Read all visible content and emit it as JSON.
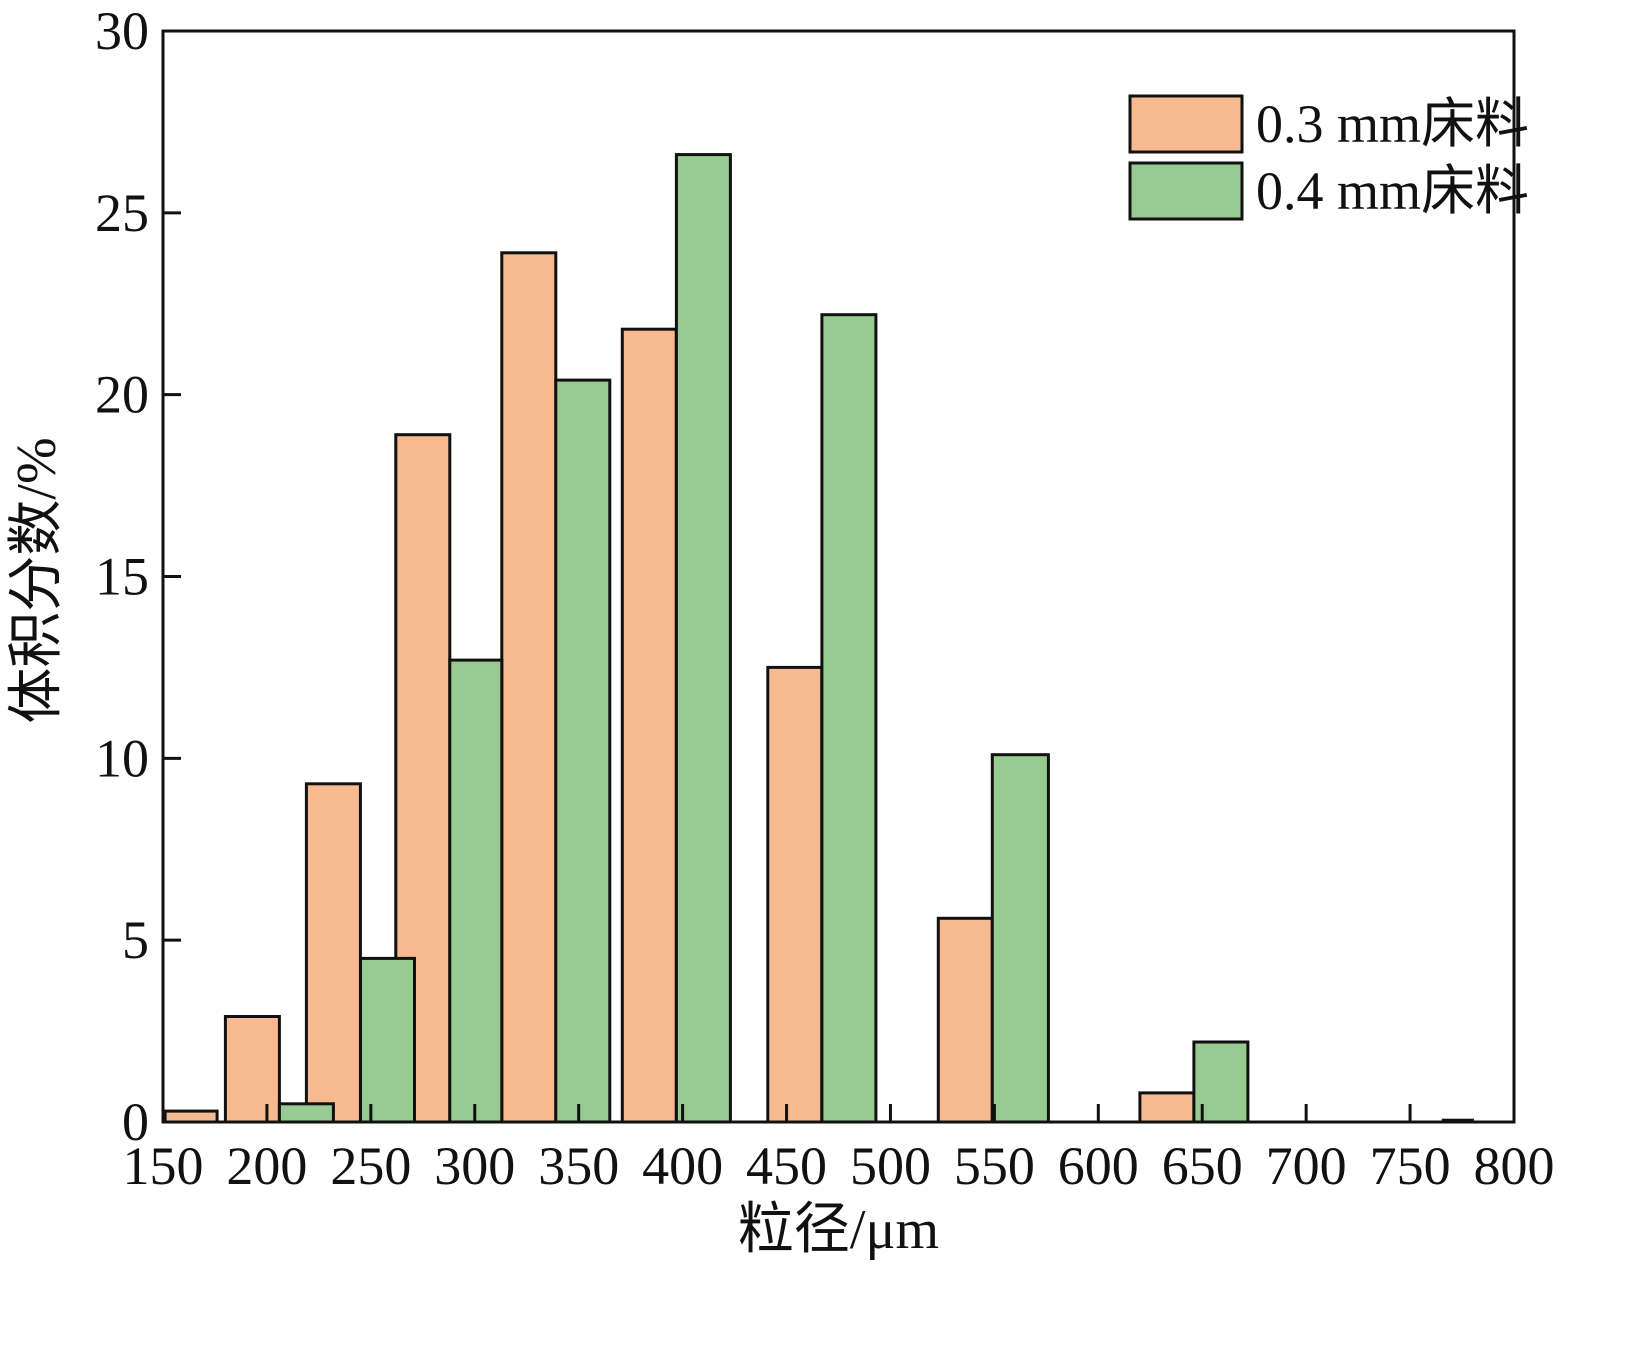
{
  "chart_data": {
    "type": "bar",
    "xlabel": "粒径/μm",
    "ylabel": "体积分数/%",
    "xlim": [
      150,
      800
    ],
    "ylim": [
      0,
      30
    ],
    "xticks": [
      "150",
      "200",
      "250",
      "300",
      "350",
      "400",
      "450",
      "500",
      "550",
      "600",
      "650",
      "700",
      "750",
      "800"
    ],
    "yticks": [
      "0",
      "5",
      "10",
      "15",
      "20",
      "25",
      "30"
    ],
    "legend_position": "top-right",
    "series": [
      {
        "name": "0.3 mm床料",
        "color": "#F7B990",
        "bars": [
          {
            "x0": 151,
            "x1": 176,
            "value": 0.3
          },
          {
            "x0": 180,
            "x1": 206,
            "value": 2.9
          },
          {
            "x0": 219,
            "x1": 245,
            "value": 9.3
          },
          {
            "x0": 262,
            "x1": 288,
            "value": 18.9
          },
          {
            "x0": 313,
            "x1": 339,
            "value": 23.9
          },
          {
            "x0": 371,
            "x1": 397,
            "value": 21.8
          },
          {
            "x0": 441,
            "x1": 467,
            "value": 12.5
          },
          {
            "x0": 523,
            "x1": 549,
            "value": 5.6
          },
          {
            "x0": 620,
            "x1": 646,
            "value": 0.8
          },
          {
            "x0": 766,
            "x1": 780,
            "value": 0.05
          }
        ]
      },
      {
        "name": "0.4 mm床料",
        "color": "#98CB91",
        "bars": [
          {
            "x0": 206,
            "x1": 232,
            "value": 0.5
          },
          {
            "x0": 245,
            "x1": 271,
            "value": 4.5
          },
          {
            "x0": 288,
            "x1": 313,
            "value": 12.7
          },
          {
            "x0": 339,
            "x1": 365,
            "value": 20.4
          },
          {
            "x0": 397,
            "x1": 423,
            "value": 26.6
          },
          {
            "x0": 467,
            "x1": 493,
            "value": 22.2
          },
          {
            "x0": 549,
            "x1": 576,
            "value": 10.1
          },
          {
            "x0": 646,
            "x1": 672,
            "value": 2.2
          }
        ]
      }
    ]
  }
}
